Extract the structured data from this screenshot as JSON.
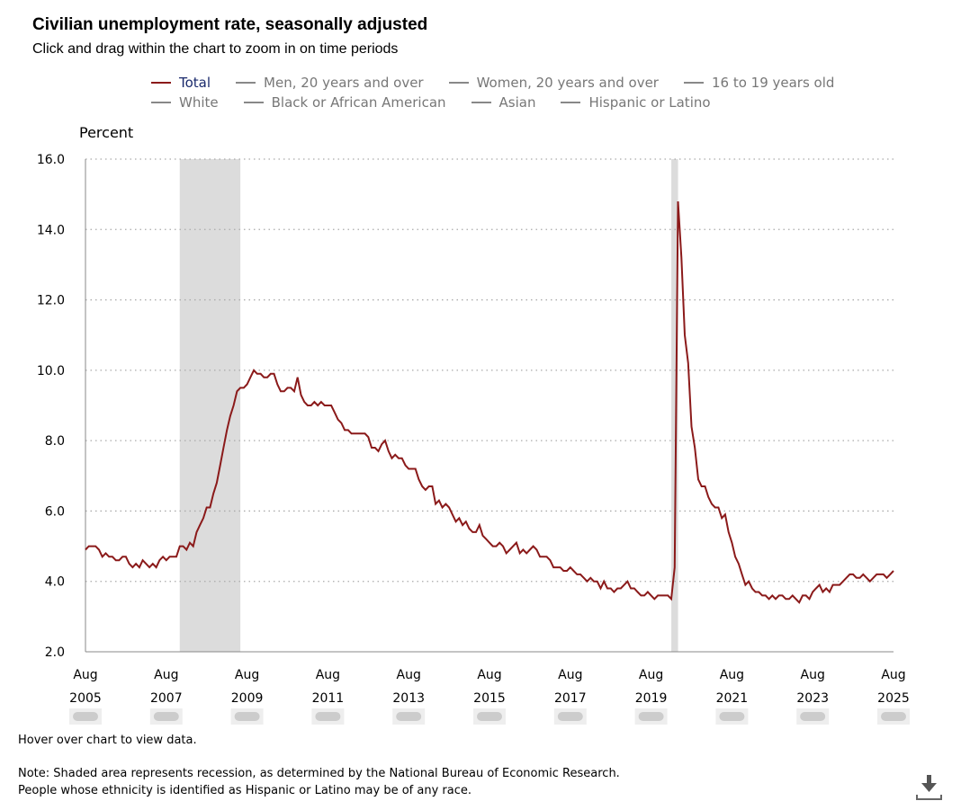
{
  "header": {
    "title": "Civilian unemployment rate, seasonally adjusted",
    "subtitle": "Click and drag within the chart to zoom in on time periods"
  },
  "legend": [
    {
      "label": "Total",
      "color": "#8b1a1a",
      "text_color": "#1a2a6c",
      "active": true
    },
    {
      "label": "Men, 20 years and over",
      "color": "#888888",
      "active": false
    },
    {
      "label": "Women, 20 years and over",
      "color": "#888888",
      "active": false
    },
    {
      "label": "16 to 19 years old",
      "color": "#888888",
      "active": false
    },
    {
      "label": "White",
      "color": "#888888",
      "active": false
    },
    {
      "label": "Black or African American",
      "color": "#888888",
      "active": false
    },
    {
      "label": "Asian",
      "color": "#888888",
      "active": false
    },
    {
      "label": "Hispanic or Latino",
      "color": "#888888",
      "active": false
    }
  ],
  "footer": {
    "hover": "Hover over chart to view data.",
    "note_1": "Note: Shaded area represents recession, as determined by the National Bureau of Economic Research.",
    "note_2": "People whose ethnicity is identified as Hispanic or Latino may be of any race."
  },
  "icons": {
    "download": "download-icon"
  },
  "chart_data": {
    "type": "line",
    "title": "Civilian unemployment rate, seasonally adjusted",
    "ylabel": "Percent",
    "ylim": [
      2,
      16
    ],
    "yticks": [
      "2.0",
      "4.0",
      "6.0",
      "8.0",
      "10.0",
      "12.0",
      "14.0",
      "16.0"
    ],
    "grid": "horizontal dotted",
    "start": "Aug 2005",
    "end": "Aug 2025",
    "frequency": "monthly",
    "xticks": [
      {
        "month": "Aug",
        "year": "2005"
      },
      {
        "month": "Aug",
        "year": "2007"
      },
      {
        "month": "Aug",
        "year": "2009"
      },
      {
        "month": "Aug",
        "year": "2011"
      },
      {
        "month": "Aug",
        "year": "2013"
      },
      {
        "month": "Aug",
        "year": "2015"
      },
      {
        "month": "Aug",
        "year": "2017"
      },
      {
        "month": "Aug",
        "year": "2019"
      },
      {
        "month": "Aug",
        "year": "2021"
      },
      {
        "month": "Aug",
        "year": "2023"
      },
      {
        "month": "Aug",
        "year": "2025"
      }
    ],
    "recessions": [
      {
        "start": "Dec 2007",
        "end": "Jun 2009",
        "start_index": 28,
        "end_index": 46
      },
      {
        "start": "Feb 2020",
        "end": "Apr 2020",
        "start_index": 174,
        "end_index": 176
      }
    ],
    "series": [
      {
        "name": "Total",
        "color": "#8b1a1a",
        "values": [
          4.9,
          5.0,
          5.0,
          5.0,
          4.9,
          4.7,
          4.8,
          4.7,
          4.7,
          4.6,
          4.6,
          4.7,
          4.7,
          4.5,
          4.4,
          4.5,
          4.4,
          4.6,
          4.5,
          4.4,
          4.5,
          4.4,
          4.6,
          4.7,
          4.6,
          4.7,
          4.7,
          4.7,
          5.0,
          5.0,
          4.9,
          5.1,
          5.0,
          5.4,
          5.6,
          5.8,
          6.1,
          6.1,
          6.5,
          6.8,
          7.3,
          7.8,
          8.3,
          8.7,
          9.0,
          9.4,
          9.5,
          9.5,
          9.6,
          9.8,
          10.0,
          9.9,
          9.9,
          9.8,
          9.8,
          9.9,
          9.9,
          9.6,
          9.4,
          9.4,
          9.5,
          9.5,
          9.4,
          9.8,
          9.3,
          9.1,
          9.0,
          9.0,
          9.1,
          9.0,
          9.1,
          9.0,
          9.0,
          9.0,
          8.8,
          8.6,
          8.5,
          8.3,
          8.3,
          8.2,
          8.2,
          8.2,
          8.2,
          8.2,
          8.1,
          7.8,
          7.8,
          7.7,
          7.9,
          8.0,
          7.7,
          7.5,
          7.6,
          7.5,
          7.5,
          7.3,
          7.2,
          7.2,
          7.2,
          6.9,
          6.7,
          6.6,
          6.7,
          6.7,
          6.2,
          6.3,
          6.1,
          6.2,
          6.1,
          5.9,
          5.7,
          5.8,
          5.6,
          5.7,
          5.5,
          5.4,
          5.4,
          5.6,
          5.3,
          5.2,
          5.1,
          5.0,
          5.0,
          5.1,
          5.0,
          4.8,
          4.9,
          5.0,
          5.1,
          4.8,
          4.9,
          4.8,
          4.9,
          5.0,
          4.9,
          4.7,
          4.7,
          4.7,
          4.6,
          4.4,
          4.4,
          4.4,
          4.3,
          4.3,
          4.4,
          4.3,
          4.2,
          4.2,
          4.1,
          4.0,
          4.1,
          4.0,
          4.0,
          3.8,
          4.0,
          3.8,
          3.8,
          3.7,
          3.8,
          3.8,
          3.9,
          4.0,
          3.8,
          3.8,
          3.7,
          3.6,
          3.6,
          3.7,
          3.6,
          3.5,
          3.6,
          3.6,
          3.6,
          3.6,
          3.5,
          4.4,
          14.8,
          13.2,
          11.0,
          10.2,
          8.4,
          7.8,
          6.9,
          6.7,
          6.7,
          6.4,
          6.2,
          6.1,
          6.1,
          5.8,
          5.9,
          5.4,
          5.1,
          4.7,
          4.5,
          4.2,
          3.9,
          4.0,
          3.8,
          3.7,
          3.7,
          3.6,
          3.6,
          3.5,
          3.6,
          3.5,
          3.6,
          3.6,
          3.5,
          3.5,
          3.6,
          3.5,
          3.4,
          3.6,
          3.6,
          3.5,
          3.7,
          3.8,
          3.9,
          3.7,
          3.8,
          3.7,
          3.9,
          3.9,
          3.9,
          4.0,
          4.1,
          4.2,
          4.2,
          4.1,
          4.1,
          4.2,
          4.1,
          4.0,
          4.1,
          4.2,
          4.2,
          4.2,
          4.1,
          4.2,
          4.3
        ]
      }
    ]
  }
}
